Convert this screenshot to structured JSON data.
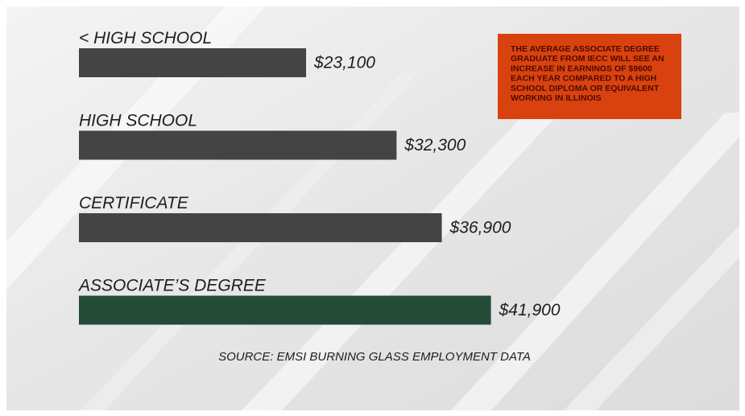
{
  "chart_data": {
    "type": "bar",
    "orientation": "horizontal",
    "categories": [
      "< HIGH SCHOOL",
      "HIGH SCHOOL",
      "CERTIFICATE",
      "ASSOCIATE’S DEGREE"
    ],
    "values": [
      23100,
      32300,
      36900,
      41900
    ],
    "value_labels": [
      "$23,100",
      "$32,300",
      "$36,900",
      "$41,900"
    ],
    "colors": [
      "#444444",
      "#444444",
      "#444444",
      "#244a38"
    ],
    "annotation": [
      "THE AVERAGE ASSOCIATE DEGREE",
      "GRADUATE FROM IECC WILL SEE AN",
      "INCREASE IN EARNINGS OF $9600",
      "EACH YEAR COMPARED TO A HIGH",
      "SCHOOL DIPLOMA OR EQUIVALENT",
      "WORKING IN ILLINOIS"
    ],
    "source": "SOURCE: EMSI BURNING GLASS EMPLOYMENT DATA"
  }
}
